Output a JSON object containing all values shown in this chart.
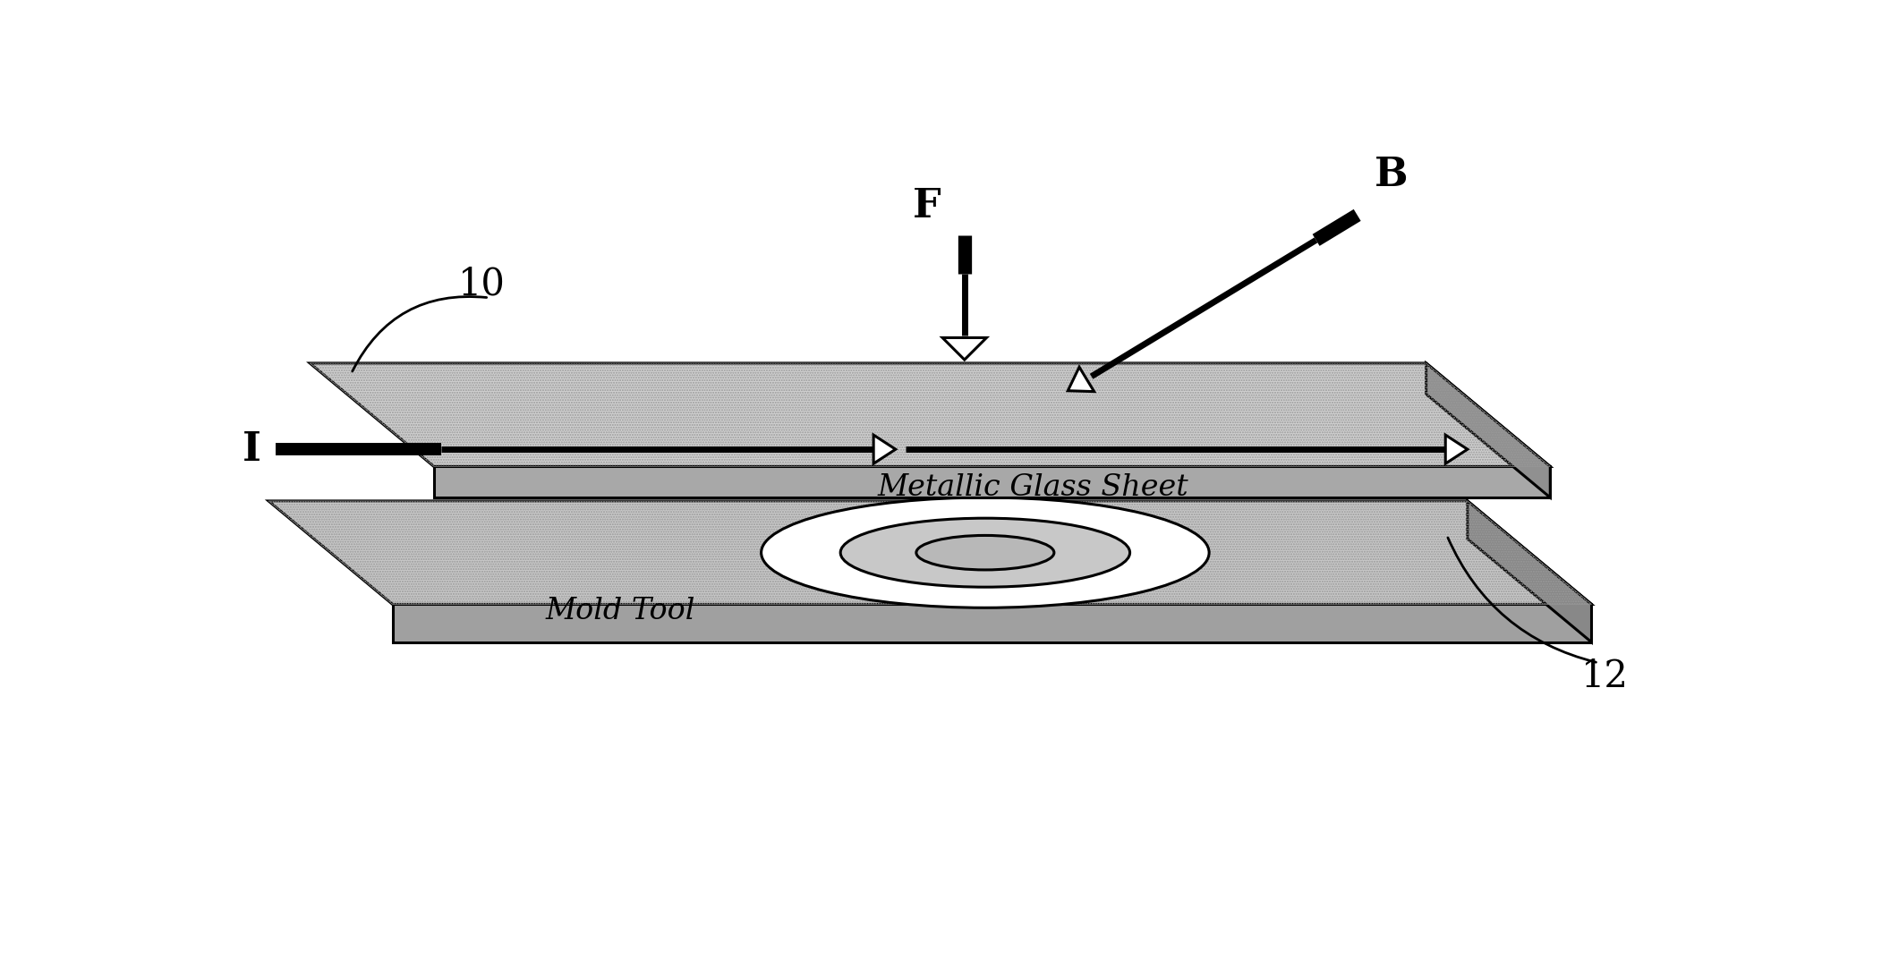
{
  "background_color": "#ffffff",
  "fig_width": 21.12,
  "fig_height": 10.92,
  "dpi": 100,
  "label_10": "10",
  "label_12": "12",
  "label_I": "I",
  "label_F": "F",
  "label_B": "B",
  "label_metallic": "Metallic Glass Sheet",
  "label_mold": "Mold Tool",
  "sheet_color": "#d0d0d0",
  "sheet_side_color": "#a8a8a8",
  "mold_color": "#c8c8c8",
  "mold_side_color": "#a0a0a0",
  "line_color": "#000000",
  "hatch_color": "#bbbbbb"
}
